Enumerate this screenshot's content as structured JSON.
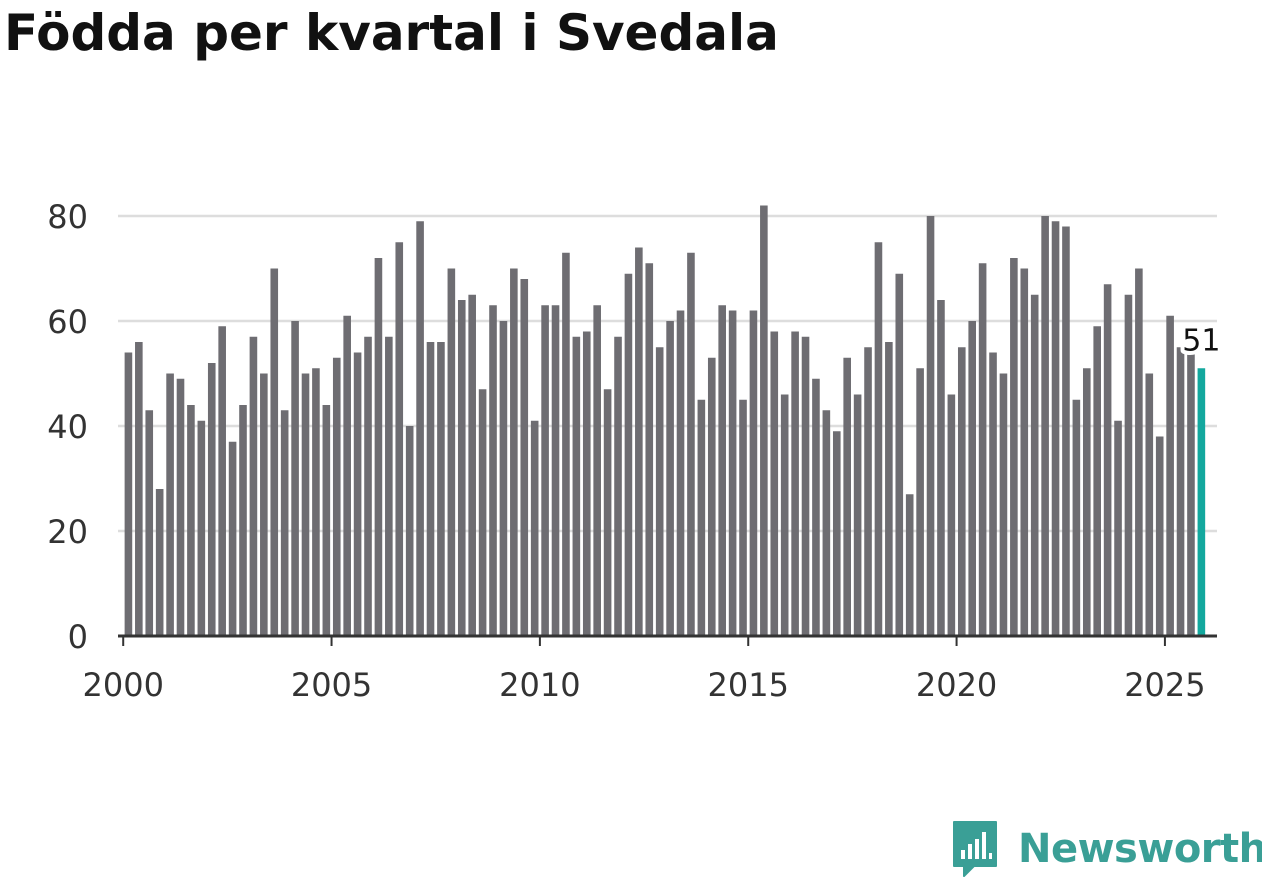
{
  "title": "Födda per kvartal i Svedala",
  "logo_text": "Newsworthy",
  "colors": {
    "bar": "#6e6d72",
    "highlight": "#13a89e",
    "grid": "#dddddd",
    "axis": "#333333",
    "logo": "#3a9f96"
  },
  "chart_data": {
    "type": "bar",
    "title": "Födda per kvartal i Svedala",
    "xlabel": "",
    "ylabel": "",
    "ylim": [
      0,
      80
    ],
    "yticks": [
      0,
      20,
      40,
      60,
      80
    ],
    "xticks": [
      2000,
      2005,
      2010,
      2015,
      2020,
      2025
    ],
    "xrange": [
      1999.875,
      2026.25
    ],
    "start_year": 2000,
    "grid": true,
    "highlight_last": true,
    "last_label": "51",
    "values": [
      54,
      56,
      43,
      28,
      50,
      49,
      44,
      41,
      52,
      59,
      37,
      44,
      57,
      50,
      70,
      43,
      60,
      50,
      51,
      44,
      53,
      61,
      54,
      57,
      72,
      57,
      75,
      40,
      79,
      56,
      56,
      70,
      64,
      65,
      47,
      63,
      60,
      70,
      68,
      41,
      63,
      63,
      73,
      57,
      58,
      63,
      47,
      57,
      69,
      74,
      71,
      55,
      60,
      62,
      73,
      45,
      53,
      63,
      62,
      45,
      62,
      82,
      58,
      46,
      58,
      57,
      49,
      43,
      39,
      53,
      46,
      55,
      75,
      56,
      69,
      27,
      51,
      80,
      64,
      46,
      55,
      60,
      71,
      54,
      50,
      72,
      70,
      65,
      80,
      79,
      78,
      45,
      51,
      59,
      67,
      41,
      65,
      70,
      50,
      38,
      61,
      55,
      54,
      51
    ]
  }
}
